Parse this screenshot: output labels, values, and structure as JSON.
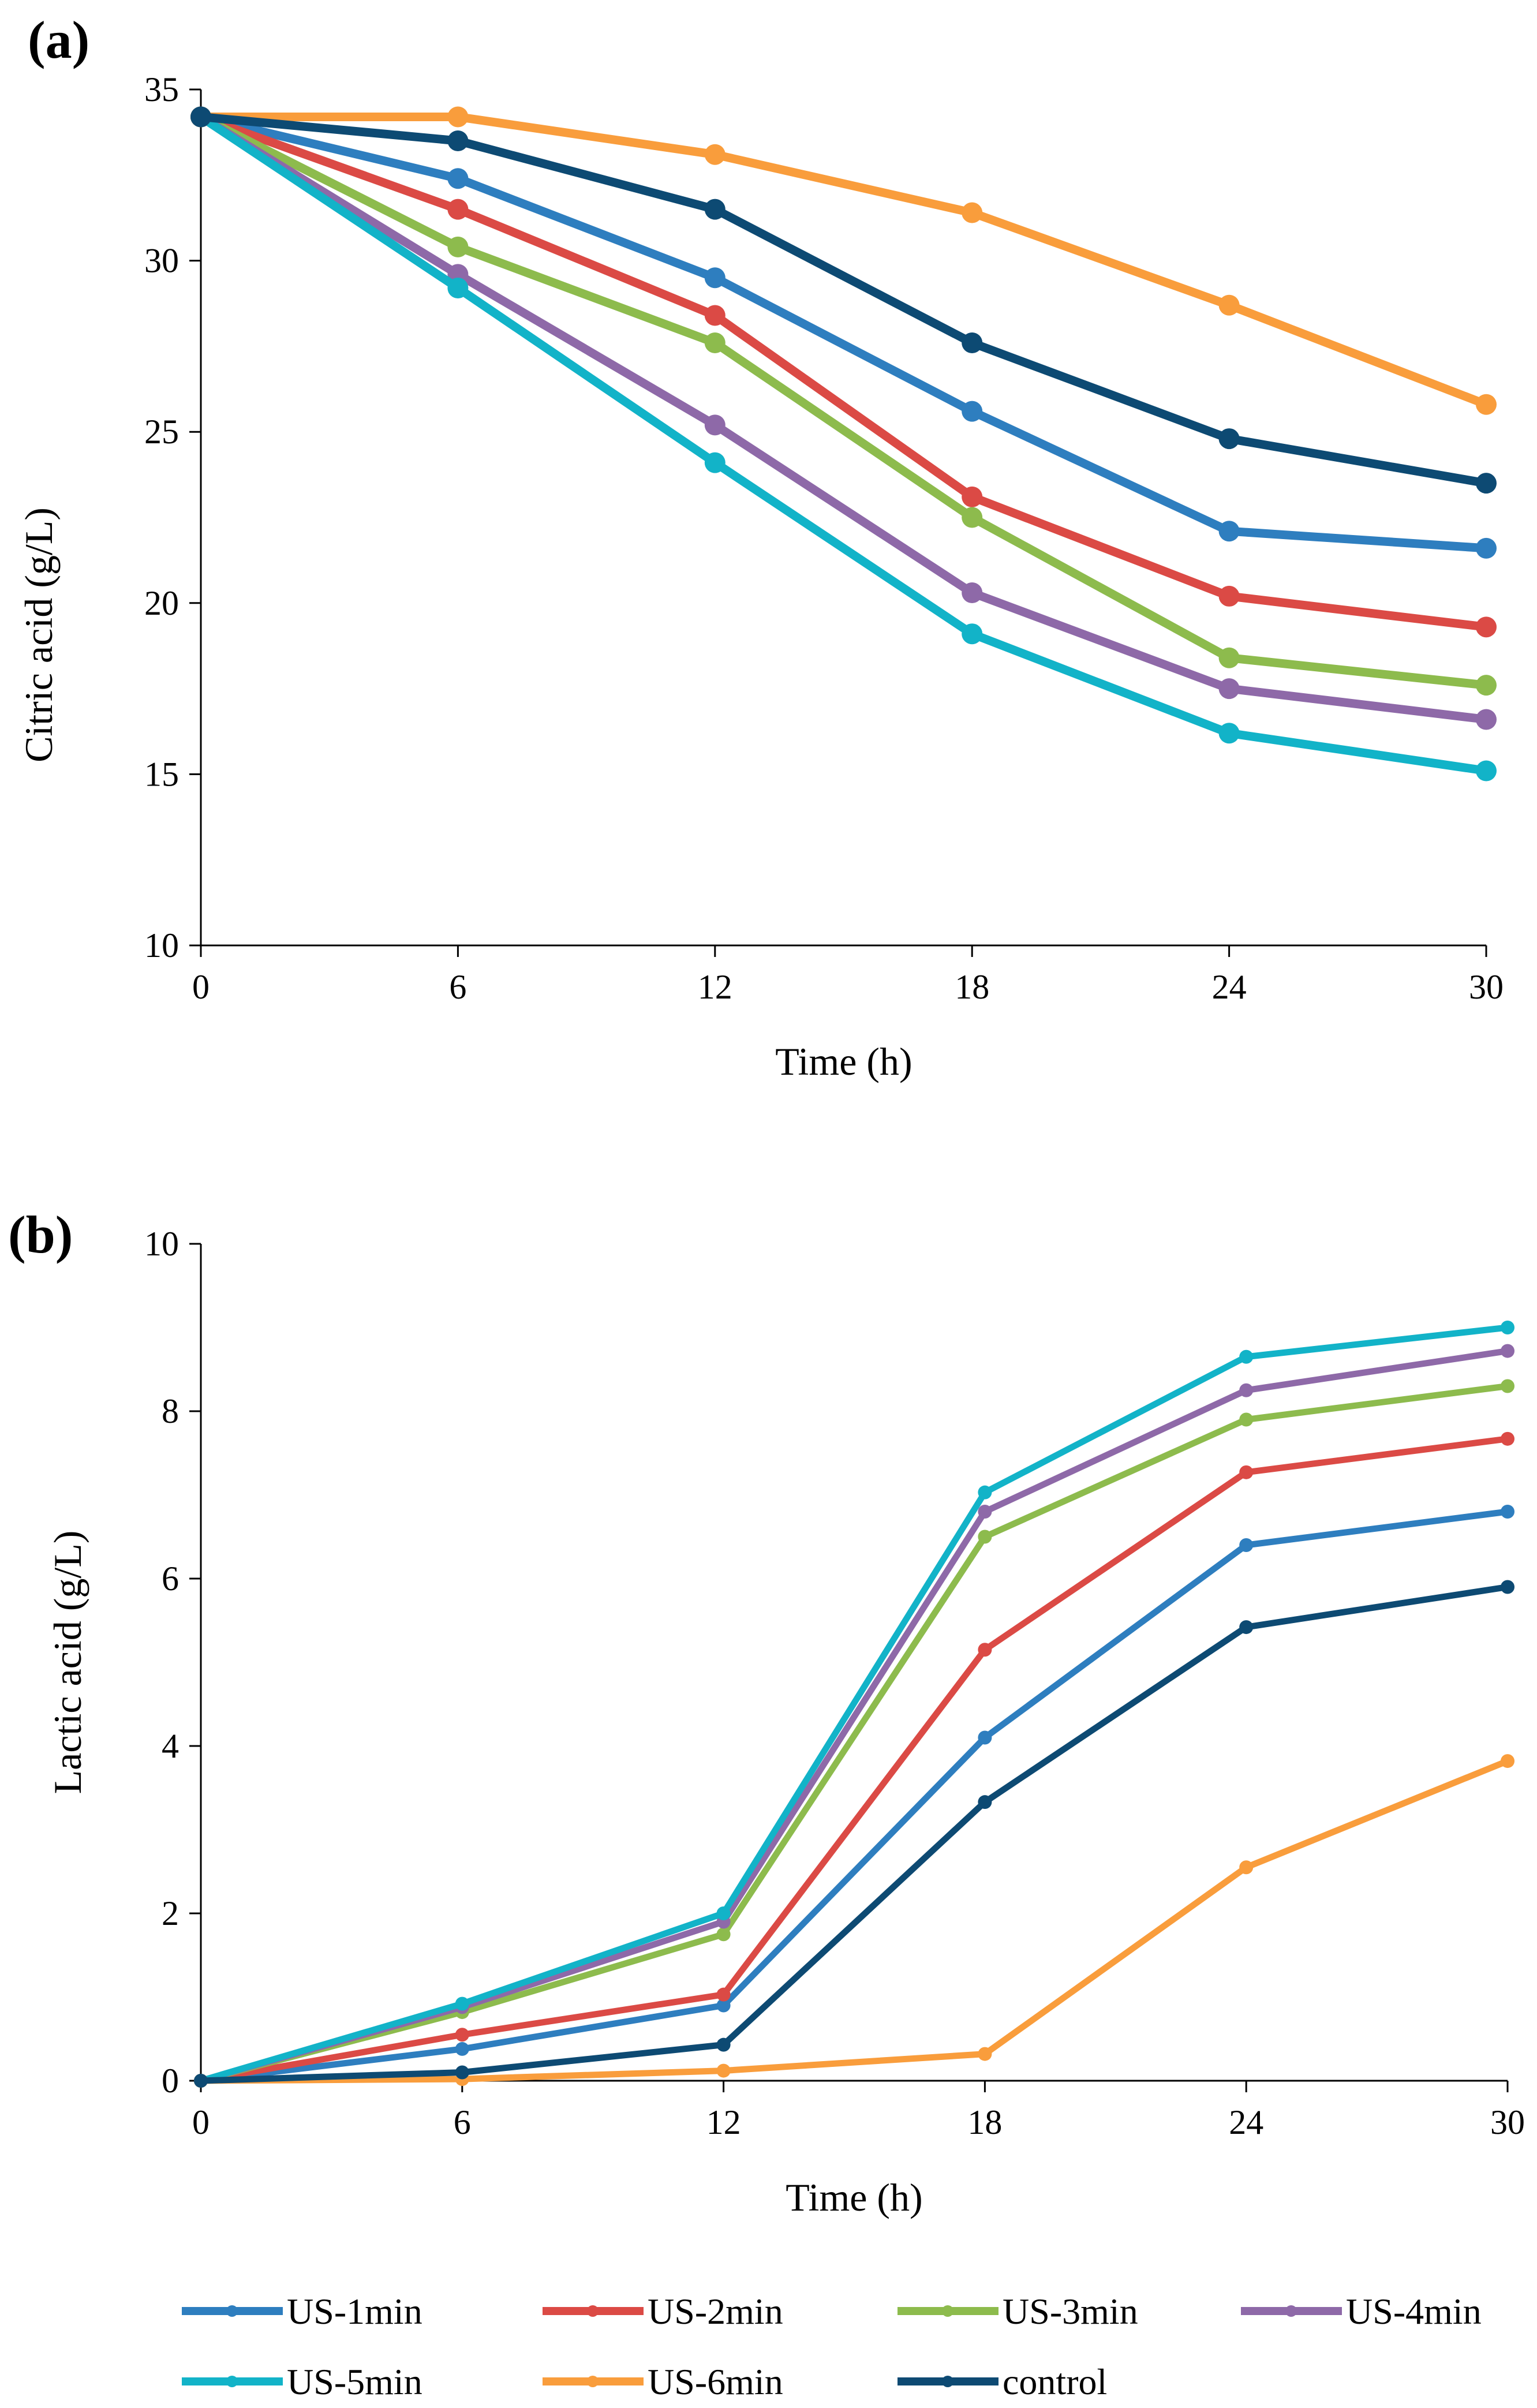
{
  "chart_data": [
    {
      "panel": "(a)",
      "type": "line",
      "markers": "large",
      "xlabel": "Time (h)",
      "ylabel": "Citric acid (g/L)",
      "x": [
        0,
        6,
        12,
        18,
        24,
        30
      ],
      "xticks": [
        "0",
        "6",
        "12",
        "18",
        "24",
        "30"
      ],
      "xlim": [
        0,
        30
      ],
      "ylim": [
        10,
        35
      ],
      "yticks": [
        "10",
        "15",
        "20",
        "25",
        "30",
        "35"
      ],
      "ytick_values": [
        10,
        15,
        20,
        25,
        30,
        35
      ],
      "series": [
        {
          "name": "US-1min",
          "color": "#2E7EBF",
          "values": [
            34.2,
            32.4,
            29.5,
            25.6,
            22.1,
            21.6
          ]
        },
        {
          "name": "US-2min",
          "color": "#DB4A45",
          "values": [
            34.2,
            31.5,
            28.4,
            23.1,
            20.2,
            19.3
          ]
        },
        {
          "name": "US-3min",
          "color": "#8DBB4D",
          "values": [
            34.2,
            30.4,
            27.6,
            22.5,
            18.4,
            17.6
          ]
        },
        {
          "name": "US-4min",
          "color": "#8E69A8",
          "values": [
            34.2,
            29.6,
            25.2,
            20.3,
            17.5,
            16.6
          ]
        },
        {
          "name": "US-5min",
          "color": "#12B3C8",
          "values": [
            34.2,
            29.2,
            24.1,
            19.1,
            16.2,
            15.1
          ]
        },
        {
          "name": "US-6min",
          "color": "#F99D3C",
          "values": [
            34.2,
            34.2,
            33.1,
            31.4,
            28.7,
            25.8
          ]
        },
        {
          "name": "control",
          "color": "#0D4A73",
          "values": [
            34.2,
            33.5,
            31.5,
            27.6,
            24.8,
            23.5
          ]
        }
      ]
    },
    {
      "panel": "(b)",
      "type": "line",
      "markers": "small",
      "xlabel": "Time (h)",
      "ylabel": "Lactic acid (g/L)",
      "x": [
        0,
        6,
        12,
        18,
        24,
        30
      ],
      "xticks": [
        "0",
        "6",
        "12",
        "18",
        "24",
        "30"
      ],
      "xlim": [
        0,
        30
      ],
      "ylim": [
        0,
        10
      ],
      "yticks": [
        "0",
        "2",
        "4",
        "6",
        "8",
        "10"
      ],
      "ytick_values": [
        0,
        2,
        4,
        6,
        8,
        10
      ],
      "series": [
        {
          "name": "US-1min",
          "color": "#2E7EBF",
          "values": [
            0,
            0.38,
            0.9,
            4.1,
            6.4,
            6.8
          ]
        },
        {
          "name": "US-2min",
          "color": "#DB4A45",
          "values": [
            0,
            0.55,
            1.03,
            5.15,
            7.27,
            7.67
          ]
        },
        {
          "name": "US-3min",
          "color": "#8DBB4D",
          "values": [
            0,
            0.82,
            1.75,
            6.5,
            7.9,
            8.3
          ]
        },
        {
          "name": "US-4min",
          "color": "#8E69A8",
          "values": [
            0,
            0.88,
            1.9,
            6.8,
            8.25,
            8.72
          ]
        },
        {
          "name": "US-5min",
          "color": "#12B3C8",
          "values": [
            0,
            0.92,
            2.0,
            7.03,
            8.65,
            9.0
          ]
        },
        {
          "name": "US-6min",
          "color": "#F99D3C",
          "values": [
            0,
            0.02,
            0.12,
            0.32,
            2.55,
            3.82
          ]
        },
        {
          "name": "control",
          "color": "#0D4A73",
          "values": [
            0,
            0.1,
            0.43,
            3.33,
            5.42,
            5.9
          ]
        }
      ]
    }
  ],
  "legend": {
    "position": "bottom",
    "items": [
      {
        "name": "US-1min",
        "color": "#2E7EBF"
      },
      {
        "name": "US-2min",
        "color": "#DB4A45"
      },
      {
        "name": "US-3min",
        "color": "#8DBB4D"
      },
      {
        "name": "US-4min",
        "color": "#8E69A8"
      },
      {
        "name": "US-5min",
        "color": "#12B3C8"
      },
      {
        "name": "US-6min",
        "color": "#F99D3C"
      },
      {
        "name": "control",
        "color": "#0D4A73"
      }
    ]
  }
}
